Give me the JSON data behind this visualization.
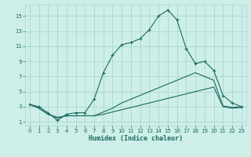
{
  "bg_color": "#ceeee8",
  "grid_color": "#a8d8d0",
  "line_color": "#1a6b60",
  "xlabel": "Humidex (Indice chaleur)",
  "xlim": [
    -0.5,
    23.5
  ],
  "ylim": [
    0.5,
    16.5
  ],
  "xticks": [
    0,
    1,
    2,
    3,
    4,
    5,
    6,
    7,
    8,
    9,
    10,
    11,
    12,
    13,
    14,
    15,
    16,
    17,
    18,
    19,
    20,
    21,
    22,
    23
  ],
  "yticks": [
    1,
    3,
    5,
    7,
    9,
    11,
    13,
    15
  ],
  "series1_x": [
    0,
    1,
    2,
    3,
    4,
    5,
    6,
    7,
    8,
    9,
    10,
    11,
    12,
    13,
    14,
    15,
    16,
    17,
    18,
    19,
    20,
    21,
    22,
    23
  ],
  "series1_y": [
    3.3,
    3.0,
    2.2,
    1.2,
    2.0,
    2.2,
    2.2,
    4.0,
    7.5,
    9.8,
    11.2,
    11.5,
    12.0,
    13.2,
    15.0,
    15.8,
    14.5,
    10.7,
    8.7,
    9.0,
    7.8,
    4.5,
    3.5,
    3.0
  ],
  "series2_x": [
    0,
    1,
    2,
    3,
    4,
    5,
    6,
    7,
    8,
    9,
    10,
    11,
    12,
    13,
    14,
    15,
    16,
    17,
    18,
    19,
    20,
    21,
    22,
    23
  ],
  "series2_y": [
    3.3,
    2.8,
    2.0,
    1.6,
    1.8,
    1.8,
    1.8,
    1.8,
    2.3,
    2.8,
    3.5,
    4.0,
    4.5,
    5.0,
    5.5,
    6.0,
    6.5,
    7.0,
    7.5,
    7.0,
    6.5,
    3.1,
    2.9,
    3.0
  ],
  "series3_x": [
    0,
    1,
    2,
    3,
    4,
    5,
    6,
    7,
    8,
    9,
    10,
    11,
    12,
    13,
    14,
    15,
    16,
    17,
    18,
    19,
    20,
    21,
    22,
    23
  ],
  "series3_y": [
    3.3,
    2.8,
    2.0,
    1.5,
    1.8,
    1.8,
    1.8,
    1.8,
    2.0,
    2.3,
    2.6,
    2.9,
    3.2,
    3.5,
    3.8,
    4.1,
    4.4,
    4.7,
    5.0,
    5.3,
    5.6,
    3.0,
    2.8,
    2.9
  ]
}
